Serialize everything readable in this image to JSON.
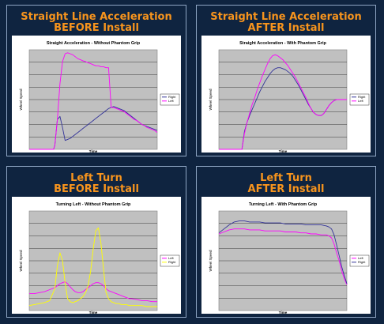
{
  "panels": [
    {
      "title_line1": "Straight Line Acceleration",
      "title_line2": "BEFORE Install"
    },
    {
      "title_line1": "Straight Line Acceleration",
      "title_line2": "AFTER Install"
    },
    {
      "title_line1": "Left Turn",
      "title_line2": "BEFORE Install"
    },
    {
      "title_line1": "Left Turn",
      "title_line2": "AFTER Install"
    }
  ],
  "colors": {
    "background": "#0f2440",
    "title": "#f7941d",
    "plot_area": "#c0c0c0",
    "right_series": "#333399",
    "left_series": "#ff00ff",
    "right_series_turn": "#ffff00"
  },
  "chart_data": [
    {
      "type": "line",
      "title": "Straight Acceleration - Without Phantom Grip",
      "xlabel": "Time",
      "ylabel": "Wheel Speed",
      "ylim": [
        0,
        100
      ],
      "grid": true,
      "legend_position": "right",
      "x": [
        0,
        4,
        8,
        12,
        16,
        19,
        20,
        22,
        24,
        26,
        28,
        30,
        32,
        34,
        36,
        38,
        40,
        42,
        44,
        46,
        48,
        50,
        52,
        54,
        56,
        58,
        60,
        62,
        64,
        66,
        68,
        70,
        72,
        74,
        76,
        78,
        80,
        82,
        84,
        86,
        88,
        90,
        92,
        94,
        96,
        98,
        100
      ],
      "series": [
        {
          "name": "Right",
          "color": "#333399",
          "values": [
            0,
            0,
            0,
            0,
            0,
            0,
            4,
            30,
            33,
            22,
            9,
            10,
            11,
            13,
            15,
            17,
            19,
            21,
            23,
            25,
            27,
            29,
            31,
            33,
            35,
            37,
            39,
            41,
            42,
            43,
            42,
            41,
            40,
            39,
            37,
            35,
            33,
            31,
            29,
            27,
            25,
            24,
            23,
            22,
            21,
            20,
            19
          ]
        },
        {
          "name": "Left",
          "color": "#ff00ff",
          "values": [
            0,
            0,
            0,
            0,
            0,
            0,
            4,
            30,
            66,
            88,
            96,
            97,
            96,
            95,
            93,
            91,
            90,
            89,
            88,
            87,
            86,
            85,
            84,
            84,
            83,
            83,
            82,
            82,
            42,
            42,
            41,
            40,
            39,
            38,
            36,
            34,
            32,
            30,
            29,
            27,
            25,
            24,
            22,
            21,
            20,
            19,
            17
          ]
        }
      ]
    },
    {
      "type": "line",
      "title": "Straight Acceleration - With Phantom Grip",
      "xlabel": "Time",
      "ylabel": "Wheel Speed",
      "ylim": [
        0,
        100
      ],
      "grid": true,
      "legend_position": "right",
      "x": [
        0,
        4,
        8,
        12,
        16,
        18,
        20,
        22,
        24,
        26,
        28,
        30,
        32,
        34,
        36,
        38,
        40,
        42,
        44,
        46,
        48,
        50,
        52,
        54,
        56,
        58,
        60,
        62,
        64,
        66,
        68,
        70,
        72,
        74,
        76,
        78,
        80,
        82,
        84,
        86,
        88,
        90,
        92,
        94,
        96,
        98,
        100
      ],
      "series": [
        {
          "name": "Right",
          "color": "#333399",
          "values": [
            0,
            0,
            0,
            0,
            0,
            0,
            18,
            27,
            34,
            40,
            46,
            52,
            58,
            63,
            68,
            72,
            76,
            79,
            81,
            82,
            82,
            81,
            80,
            78,
            76,
            73,
            69,
            65,
            60,
            55,
            50,
            45,
            41,
            37,
            35,
            34,
            34,
            36,
            40,
            44,
            47,
            49,
            50,
            50,
            50,
            50,
            50
          ]
        },
        {
          "name": "Left",
          "color": "#ff00ff",
          "values": [
            0,
            0,
            0,
            0,
            0,
            0,
            16,
            27,
            36,
            45,
            52,
            60,
            67,
            74,
            80,
            86,
            91,
            94,
            95,
            94,
            92,
            90,
            87,
            84,
            80,
            76,
            72,
            67,
            62,
            57,
            52,
            46,
            41,
            37,
            35,
            34,
            34,
            36,
            40,
            44,
            47,
            49,
            50,
            50,
            50,
            50,
            50
          ]
        }
      ]
    },
    {
      "type": "line",
      "title": "Turning Left - Without Phantom Grip",
      "xlabel": "Time",
      "ylabel": "Wheel Speed",
      "ylim": [
        0,
        100
      ],
      "grid": true,
      "legend_position": "right",
      "x": [
        0,
        4,
        8,
        12,
        16,
        20,
        22,
        24,
        26,
        28,
        30,
        32,
        34,
        36,
        38,
        40,
        42,
        44,
        46,
        48,
        50,
        52,
        54,
        56,
        58,
        60,
        62,
        64,
        66,
        68,
        70,
        72,
        74,
        76,
        78,
        80,
        84,
        88,
        92,
        96,
        100
      ],
      "series": [
        {
          "name": "Left",
          "color": "#ff00ff",
          "values": [
            17,
            17,
            18,
            19,
            21,
            23,
            25,
            27,
            28,
            29,
            27,
            24,
            21,
            19,
            18,
            18,
            19,
            21,
            23,
            25,
            27,
            28,
            28,
            27,
            25,
            22,
            20,
            19,
            18,
            17,
            16,
            15,
            14,
            13,
            12,
            12,
            11,
            10,
            10,
            9,
            9
          ]
        },
        {
          "name": "Right",
          "color": "#ffff00",
          "values": [
            5,
            6,
            7,
            8,
            10,
            22,
            45,
            58,
            50,
            28,
            12,
            9,
            8,
            9,
            10,
            12,
            14,
            18,
            25,
            40,
            62,
            80,
            83,
            68,
            42,
            18,
            12,
            9,
            8,
            7,
            7,
            6,
            6,
            6,
            5,
            5,
            5,
            5,
            4,
            4,
            4
          ]
        }
      ]
    },
    {
      "type": "line",
      "title": "Turning Left - With Phantom Grip",
      "xlabel": "Time",
      "ylabel": "Wheel Speed",
      "ylim": [
        0,
        100
      ],
      "grid": true,
      "legend_position": "right",
      "x": [
        0,
        4,
        8,
        12,
        16,
        20,
        24,
        28,
        32,
        36,
        40,
        44,
        48,
        52,
        56,
        60,
        64,
        68,
        72,
        76,
        80,
        84,
        86,
        88,
        90,
        92,
        94,
        96,
        98,
        100
      ],
      "series": [
        {
          "name": "Left",
          "color": "#ff00ff",
          "values": [
            77,
            79,
            81,
            82,
            82,
            82,
            81,
            81,
            81,
            80,
            80,
            80,
            80,
            79,
            79,
            79,
            78,
            78,
            77,
            77,
            76,
            76,
            75,
            73,
            67,
            58,
            50,
            40,
            32,
            26
          ]
        },
        {
          "name": "Right",
          "color": "#333399",
          "values": [
            78,
            82,
            86,
            89,
            90,
            90,
            89,
            89,
            89,
            88,
            88,
            88,
            88,
            87,
            87,
            87,
            87,
            86,
            86,
            86,
            86,
            85,
            84,
            82,
            76,
            66,
            55,
            44,
            35,
            27
          ]
        }
      ]
    }
  ]
}
